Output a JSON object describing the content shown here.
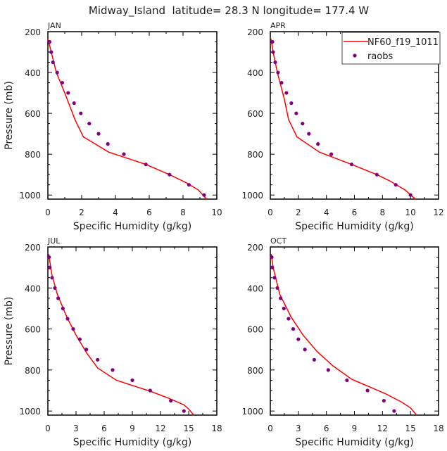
{
  "title": "Midway_Island  latitude= 28.3 N longitude= 177.4 W",
  "colors": {
    "model": "#ff0000",
    "obs": "#800080",
    "axis": "#000000"
  },
  "legend": {
    "model_label": "NF60_f19_1011",
    "obs_label": "raobs",
    "placement": "top-right of APR panel"
  },
  "chart_data": [
    {
      "type": "line",
      "panel": "JAN",
      "title": "JAN",
      "xlabel": "Specific Humidity (g/kg)",
      "ylabel": "Pressure (mb)",
      "xlim": [
        0,
        10
      ],
      "ylim": [
        1020,
        200
      ],
      "xticks": [
        0,
        2,
        4,
        6,
        8,
        10
      ],
      "yticks": [
        200,
        400,
        600,
        800,
        1000
      ],
      "series": [
        {
          "name": "NF60_f19_1011",
          "kind": "line",
          "x": [
            0.0,
            0.2,
            0.5,
            1.0,
            1.6,
            2.1,
            3.6,
            5.8,
            7.2,
            8.2,
            8.9,
            9.4
          ],
          "y": [
            235,
            300,
            400,
            500,
            630,
            715,
            790,
            850,
            900,
            940,
            975,
            1020
          ]
        },
        {
          "name": "raobs",
          "kind": "scatter",
          "x": [
            0.1,
            0.2,
            0.3,
            0.55,
            0.85,
            1.2,
            1.55,
            1.95,
            2.45,
            3.0,
            3.55,
            4.5,
            5.8,
            7.2,
            8.35,
            9.25
          ],
          "y": [
            250,
            300,
            350,
            400,
            450,
            500,
            550,
            600,
            650,
            700,
            750,
            800,
            850,
            900,
            950,
            1000
          ]
        }
      ]
    },
    {
      "type": "line",
      "panel": "APR",
      "title": "APR",
      "xlabel": "Specific Humidity (g/kg)",
      "ylabel": "",
      "xlim": [
        0,
        12
      ],
      "ylim": [
        1020,
        200
      ],
      "xticks": [
        0,
        2,
        4,
        6,
        8,
        10,
        12
      ],
      "yticks": [
        200,
        400,
        600,
        800,
        1000
      ],
      "series": [
        {
          "name": "NF60_f19_1011",
          "kind": "line",
          "x": [
            0.05,
            0.2,
            0.5,
            1.0,
            1.3,
            1.9,
            3.5,
            5.8,
            7.6,
            8.5,
            9.6,
            10.35
          ],
          "y": [
            235,
            300,
            400,
            530,
            630,
            715,
            790,
            850,
            900,
            930,
            975,
            1020
          ]
        },
        {
          "name": "raobs",
          "kind": "scatter",
          "x": [
            0.15,
            0.2,
            0.35,
            0.55,
            0.8,
            1.15,
            1.5,
            1.85,
            2.3,
            2.75,
            3.4,
            4.35,
            5.8,
            7.6,
            8.95,
            10.0
          ],
          "y": [
            250,
            300,
            350,
            400,
            450,
            500,
            550,
            600,
            650,
            700,
            750,
            800,
            850,
            900,
            950,
            1000
          ]
        }
      ]
    },
    {
      "type": "line",
      "panel": "JUL",
      "title": "JUL",
      "xlabel": "Specific Humidity (g/kg)",
      "ylabel": "Pressure (mb)",
      "xlim": [
        0,
        18
      ],
      "ylim": [
        1020,
        200
      ],
      "xticks": [
        0,
        3,
        6,
        9,
        12,
        15,
        18
      ],
      "yticks": [
        200,
        400,
        600,
        800,
        1000
      ],
      "series": [
        {
          "name": "NF60_f19_1011",
          "kind": "line",
          "x": [
            0.1,
            0.4,
            1.0,
            2.0,
            3.0,
            4.1,
            5.3,
            7.3,
            11.0,
            13.0,
            14.5,
            15.0,
            15.55
          ],
          "y": [
            235,
            330,
            430,
            540,
            630,
            715,
            790,
            850,
            905,
            940,
            970,
            990,
            1020
          ]
        },
        {
          "name": "raobs",
          "kind": "scatter",
          "x": [
            0.13,
            0.2,
            0.45,
            0.75,
            1.1,
            1.6,
            2.1,
            2.7,
            3.4,
            4.1,
            5.3,
            6.9,
            9.0,
            10.9,
            13.1,
            14.5
          ],
          "y": [
            250,
            300,
            350,
            400,
            450,
            500,
            550,
            600,
            650,
            700,
            750,
            800,
            850,
            900,
            950,
            1000
          ]
        }
      ]
    },
    {
      "type": "line",
      "panel": "OCT",
      "title": "OCT",
      "xlabel": "Specific Humidity (g/kg)",
      "ylabel": "",
      "xlim": [
        0,
        18
      ],
      "ylim": [
        1020,
        200
      ],
      "xticks": [
        0,
        3,
        6,
        9,
        12,
        15,
        18
      ],
      "yticks": [
        200,
        400,
        600,
        800,
        1000
      ],
      "series": [
        {
          "name": "NF60_f19_1011",
          "kind": "line",
          "x": [
            0.1,
            0.3,
            1.0,
            2.2,
            3.5,
            5.0,
            6.7,
            8.7,
            10.5,
            12.3,
            14.0,
            15.0,
            15.65
          ],
          "y": [
            235,
            300,
            430,
            540,
            630,
            710,
            780,
            845,
            880,
            915,
            955,
            985,
            1020
          ]
        },
        {
          "name": "raobs",
          "kind": "scatter",
          "x": [
            0.15,
            0.2,
            0.45,
            0.75,
            1.1,
            1.45,
            1.95,
            2.45,
            3.0,
            3.7,
            4.7,
            6.2,
            8.2,
            10.4,
            12.15,
            13.25
          ],
          "y": [
            250,
            300,
            350,
            400,
            450,
            500,
            550,
            600,
            650,
            700,
            750,
            800,
            850,
            900,
            950,
            1000
          ]
        }
      ]
    }
  ]
}
